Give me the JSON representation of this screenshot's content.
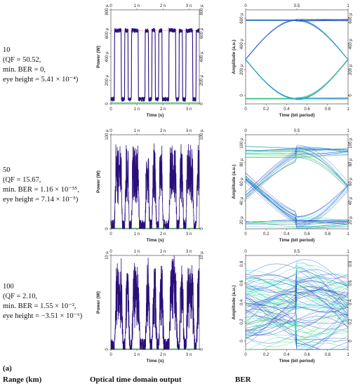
{
  "figure_tag": "(a)",
  "column_headers": {
    "range": "Range (km)",
    "optical": "Optical time domain output",
    "ber": "BER"
  },
  "rows": [
    {
      "range": "10",
      "qf": "(QF = 50.52,",
      "min_ber": "min. BER = 0,",
      "eye_height": "eye height = 5.41 × 10⁻⁴)"
    },
    {
      "range": "50",
      "qf": "(QF = 15.67,",
      "min_ber": "min. BER = 1.16 × 10⁻⁵⁵,",
      "eye_height": "eye height = 7.14 × 10⁻⁵)"
    },
    {
      "range": "100",
      "qf": "(QF = 2.10,",
      "min_ber": "min. BER = 1.55 × 10⁻²,",
      "eye_height": "eye height = −3.51 × 10⁻⁶)"
    }
  ],
  "colors": {
    "trace": "#2a0f7a",
    "baseline": "#22bb33",
    "eye_blue": "#2a3fd0",
    "eye_cyan": "#25d6c6",
    "eye_green": "#3fdc5a",
    "threshold_red": "#e0304a"
  },
  "chart_data": [
    {
      "type": "line",
      "panel": "time-10km",
      "xlabel": "Time (s)",
      "ylabel": "Power (W)",
      "x_ticks": [
        "0",
        "1 n",
        "2 n",
        "3 n"
      ],
      "y_ticks": [
        "0",
        "200 µ",
        "400 µ",
        "600 µ",
        "800 µ"
      ],
      "xlim": [
        0,
        3.4e-09
      ],
      "ylim": [
        0,
        0.00082
      ],
      "bits": [
        0,
        1,
        1,
        0,
        1,
        0,
        1,
        1,
        0,
        0,
        1,
        0,
        1,
        0,
        1,
        0,
        0,
        1,
        1,
        0,
        1,
        0,
        1,
        1,
        0,
        1
      ],
      "high_level": 0.00064,
      "low_level": 4e-05,
      "noise_amplitude": 2e-05
    },
    {
      "type": "line",
      "panel": "time-50km",
      "xlabel": "Time (s)",
      "ylabel": "Power (W)",
      "x_ticks": [
        "0",
        "1 n",
        "2 n",
        "3 n"
      ],
      "y_ticks": [
        "0",
        "100 µ"
      ],
      "xlim": [
        0,
        3.4e-09
      ],
      "ylim": [
        0,
        0.00017
      ],
      "bits": [
        0,
        1,
        1,
        0,
        1,
        0,
        1,
        1,
        0,
        0,
        1,
        0,
        1,
        0,
        1,
        0,
        0,
        1,
        1,
        0,
        1,
        0,
        1,
        1,
        0,
        1
      ],
      "high_level": 0.0001,
      "low_level": 5e-06,
      "noise_amplitude": 3e-05
    },
    {
      "type": "line",
      "panel": "time-100km",
      "xlabel": "Time (s)",
      "ylabel": "Power (W)",
      "x_ticks": [
        "0",
        "1 n",
        "2 n",
        "3 n"
      ],
      "y_ticks": [
        "0",
        "10 µ"
      ],
      "xlim": [
        0,
        3.4e-09
      ],
      "ylim": [
        0,
        1.6e-05
      ],
      "bits": [
        0,
        1,
        1,
        0,
        1,
        0,
        1,
        1,
        0,
        0,
        1,
        0,
        1,
        0,
        1,
        0,
        0,
        1,
        1,
        0,
        1,
        0,
        1,
        1,
        0,
        1
      ],
      "high_level": 9.5e-06,
      "low_level": 5e-07,
      "noise_amplitude": 3.5e-06
    },
    {
      "type": "line",
      "panel": "eye-10km",
      "xlabel": "Time (bit period)",
      "ylabel": "Amplitude (a.u.)",
      "x_ticks": [
        "0",
        "0.2",
        "0.4",
        "0.6",
        "0.8",
        "1"
      ],
      "top_ticks": [
        "0",
        "0.5",
        "1"
      ],
      "y_ticks": [
        "0",
        "200 µ",
        "400 µ",
        "600 µ"
      ],
      "right_ticks": [
        "0",
        "200 µ",
        "400 µ",
        "600 µ"
      ],
      "xlim": [
        0,
        1
      ],
      "ylim": [
        0,
        0.00072
      ],
      "high_level": 0.00064,
      "low_level": 4e-05,
      "noise_amplitude": 1e-05
    },
    {
      "type": "line",
      "panel": "eye-50km",
      "xlabel": "Time (bit period)",
      "ylabel": "Amplitude (a.u.)",
      "x_ticks": [
        "0",
        "0.2",
        "0.4",
        "0.6",
        "0.8",
        "1"
      ],
      "top_ticks": [
        "0",
        "0.5",
        "1"
      ],
      "y_ticks": [
        "20 µ",
        "40 µ",
        "60 µ",
        "80 µ",
        "100 µ"
      ],
      "right_ticks": [
        "20 µ",
        "40 µ",
        "60 µ",
        "80 µ",
        "100 µ"
      ],
      "xlim": [
        0,
        1
      ],
      "ylim": [
        0,
        0.000115
      ],
      "high_level": 9.5e-05,
      "low_level": 8e-06,
      "noise_amplitude": 8e-06
    },
    {
      "type": "line",
      "panel": "eye-100km",
      "xlabel": "Time (bit period)",
      "ylabel": "Amplitude (a.u.)",
      "x_ticks": [
        "0",
        "0.2",
        "0.4",
        "0.6",
        "0.8",
        "1"
      ],
      "top_ticks": [
        "0",
        "0.5",
        "1"
      ],
      "y_ticks": [
        "0",
        "0.2",
        "0.4",
        "0.6",
        "0.8"
      ],
      "right_ticks": [
        "0",
        "0.2",
        "0.4",
        "0.6",
        "0.8"
      ],
      "xlim": [
        0,
        1
      ],
      "ylim": [
        -0.05,
        0.9
      ],
      "high_level": 0.6,
      "low_level": 0.12,
      "noise_amplitude": 0.2
    }
  ]
}
